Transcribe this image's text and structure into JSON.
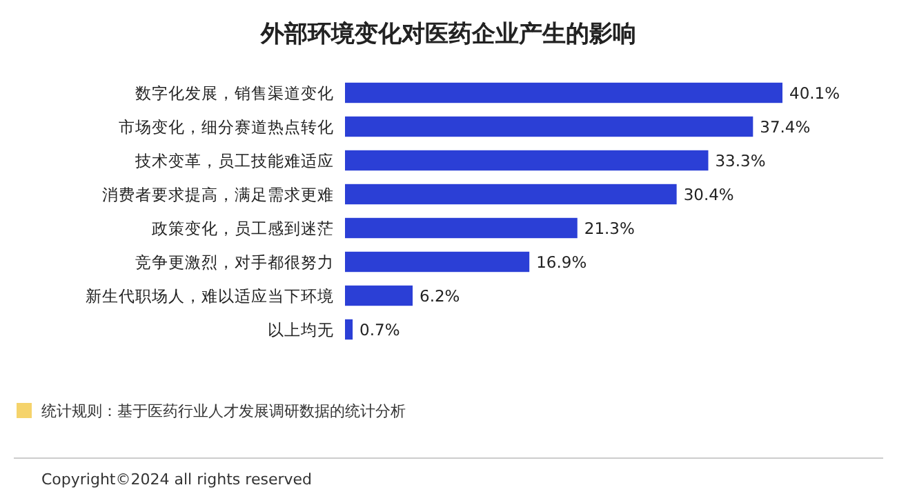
{
  "chart_data": {
    "type": "bar",
    "orientation": "horizontal",
    "title": "外部环境变化对医药企业产生的影响",
    "categories": [
      "数字化发展，销售渠道变化",
      "市场变化，细分赛道热点转化",
      "技术变革，员工技能难适应",
      "消费者要求提高，满足需求更难",
      "政策变化，员工感到迷茫",
      "竞争更激烈，对手都很努力",
      "新生代职场人，难以适应当下环境",
      "以上均无"
    ],
    "values": [
      40.1,
      37.4,
      33.3,
      30.4,
      21.3,
      16.9,
      6.2,
      0.7
    ],
    "value_labels": [
      "40.1%",
      "37.4%",
      "33.3%",
      "30.4%",
      "21.3%",
      "16.9%",
      "6.2%",
      "0.7%"
    ],
    "color": "#2b3fd6",
    "annotations": [
      "统计规则：基于医药行业人才发展调研数据的统计分析",
      "Copyright©2024 all rights reserved"
    ]
  }
}
